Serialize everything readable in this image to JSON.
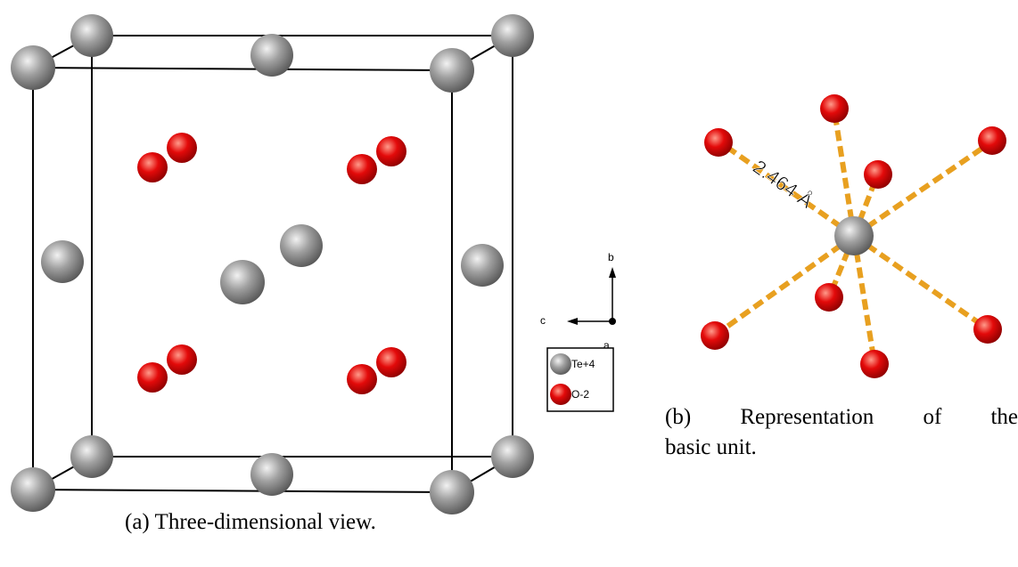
{
  "panel_a": {
    "caption": "(a) Three-dimensional view.",
    "axes": {
      "b": "b",
      "c": "c",
      "a": "a"
    },
    "legend": [
      {
        "label": "Te+4",
        "color": "#9a9a9a"
      },
      {
        "label": "O-2",
        "color": "#e30a0a"
      }
    ]
  },
  "panel_b": {
    "caption_words": [
      "(b)",
      "Representation",
      "of",
      "the"
    ],
    "caption_line2": "basic unit.",
    "bond_label": "2.464 Å"
  },
  "colors": {
    "te_atom": "#9a9a9a",
    "o_atom": "#e30a0a",
    "bond": "#e8a020",
    "cell_edge": "#000000"
  }
}
